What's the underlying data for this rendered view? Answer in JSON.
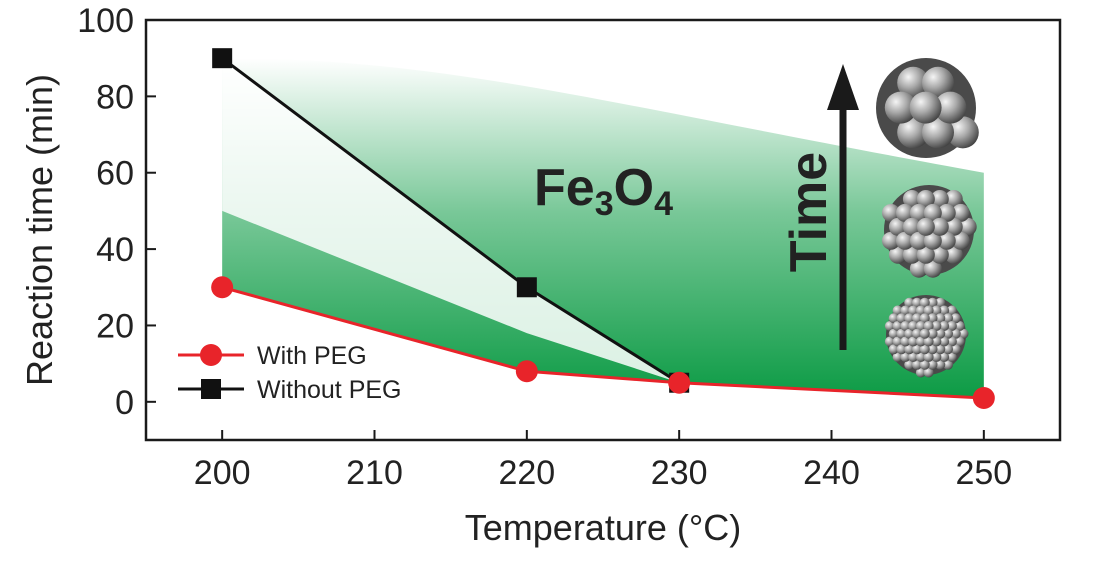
{
  "chart_data": {
    "type": "line",
    "title": "",
    "xlabel": "Temperature (°C)",
    "ylabel": "Reaction time (min)",
    "xlim": [
      195,
      255
    ],
    "ylim": [
      -10,
      100
    ],
    "x_ticks": [
      200,
      210,
      220,
      230,
      240,
      250
    ],
    "y_ticks": [
      0,
      20,
      40,
      60,
      80,
      100
    ],
    "grid": false,
    "legend_position": "bottom-left",
    "series": [
      {
        "name": "With PEG",
        "color": "#e8242a",
        "marker": "circle",
        "points": [
          {
            "x": 200,
            "y": 30
          },
          {
            "x": 220,
            "y": 8
          },
          {
            "x": 230,
            "y": 5
          },
          {
            "x": 250,
            "y": 1
          }
        ]
      },
      {
        "name": "Without PEG",
        "color": "#111111",
        "marker": "square",
        "points": [
          {
            "x": 200,
            "y": 90
          },
          {
            "x": 220,
            "y": 30
          },
          {
            "x": 230,
            "y": 5
          }
        ]
      }
    ],
    "annotations": {
      "phase_formula": {
        "base": "Fe",
        "sub1": "3",
        "mid": "O",
        "sub2": "4"
      },
      "arrow_label": "Time",
      "fill_color": "#0a9a43",
      "fill_region": {
        "x_range": [
          200,
          250
        ],
        "y_upper_at_start": 90,
        "y_upper_at_end": 60
      },
      "particle_images": [
        "small-nanoparticle-cluster",
        "medium-nanoparticle-cluster",
        "large-nanoparticle-cluster"
      ]
    }
  }
}
